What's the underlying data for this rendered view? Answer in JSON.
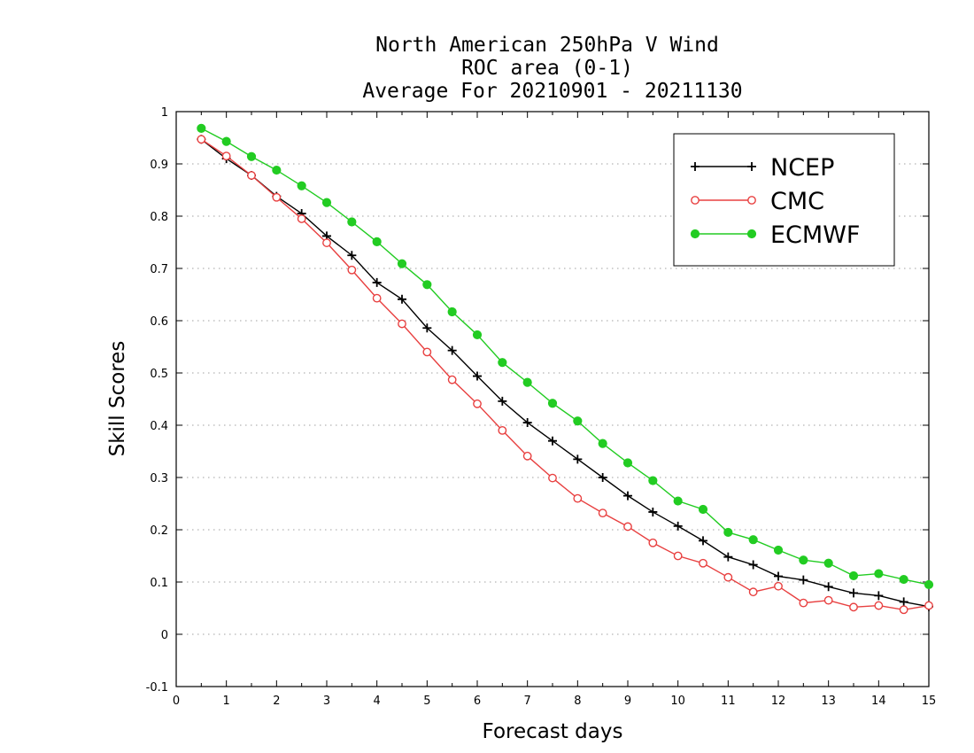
{
  "chart_data": {
    "type": "line",
    "title": [
      "North American 250hPa V Wind",
      "ROC area (0-1)",
      "Average For 20210901 - 20211130"
    ],
    "xlabel": "Forecast days",
    "ylabel": "Skill Scores",
    "xlim": [
      0,
      15
    ],
    "ylim": [
      -0.1,
      1
    ],
    "xticks": [
      0,
      1,
      2,
      3,
      4,
      5,
      6,
      7,
      8,
      9,
      10,
      11,
      12,
      13,
      14,
      15
    ],
    "xtick_labels": [
      "0",
      "1",
      "2",
      "3",
      "4",
      "5",
      "6",
      "7",
      "8",
      "9",
      "10",
      "11",
      "12",
      "13",
      "14",
      "15"
    ],
    "yticks": [
      -0.1,
      0,
      0.1,
      0.2,
      0.3,
      0.4,
      0.5,
      0.6,
      0.7,
      0.8,
      0.9,
      1
    ],
    "ytick_labels": [
      "-0.1",
      "0",
      "0.1",
      "0.2",
      "0.3",
      "0.4",
      "0.5",
      "0.6",
      "0.7",
      "0.8",
      "0.9",
      "1"
    ],
    "grid": "horizontal dotted",
    "legend_position": "top-right",
    "x": [
      0.5,
      1,
      1.5,
      2,
      2.5,
      3,
      3.5,
      4,
      4.5,
      5,
      5.5,
      6,
      6.5,
      7,
      7.5,
      8,
      8.5,
      9,
      9.5,
      10,
      10.5,
      11,
      11.5,
      12,
      12.5,
      13,
      13.5,
      14,
      14.5,
      15
    ],
    "series": [
      {
        "name": "NCEP",
        "color": "#000000",
        "marker": "plus",
        "values": [
          0.947,
          0.91,
          0.878,
          0.838,
          0.805,
          0.762,
          0.725,
          0.673,
          0.641,
          0.586,
          0.543,
          0.494,
          0.446,
          0.405,
          0.37,
          0.335,
          0.3,
          0.265,
          0.234,
          0.207,
          0.179,
          0.148,
          0.133,
          0.111,
          0.104,
          0.091,
          0.079,
          0.074,
          0.062,
          0.053
        ]
      },
      {
        "name": "CMC",
        "color": "#e84040",
        "marker": "open-circle",
        "values": [
          0.947,
          0.915,
          0.878,
          0.836,
          0.795,
          0.749,
          0.697,
          0.643,
          0.594,
          0.54,
          0.487,
          0.441,
          0.39,
          0.341,
          0.299,
          0.26,
          0.232,
          0.206,
          0.175,
          0.15,
          0.136,
          0.109,
          0.081,
          0.092,
          0.06,
          0.065,
          0.052,
          0.055,
          0.047,
          0.055
        ]
      },
      {
        "name": "ECMWF",
        "color": "#22cc22",
        "marker": "filled-circle",
        "values": [
          0.968,
          0.943,
          0.914,
          0.888,
          0.858,
          0.826,
          0.789,
          0.751,
          0.709,
          0.669,
          0.617,
          0.573,
          0.52,
          0.482,
          0.442,
          0.408,
          0.365,
          0.328,
          0.294,
          0.255,
          0.239,
          0.195,
          0.181,
          0.161,
          0.142,
          0.136,
          0.112,
          0.116,
          0.105,
          0.095
        ]
      }
    ]
  }
}
